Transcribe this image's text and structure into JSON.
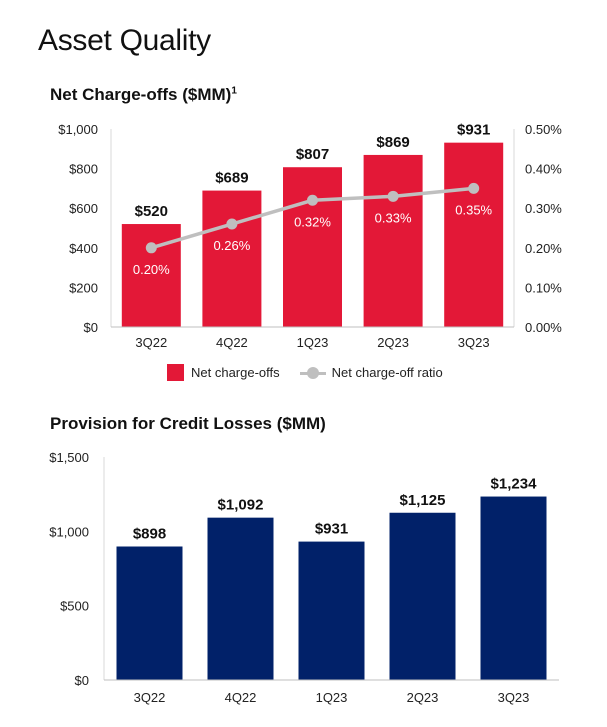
{
  "page": {
    "title": "Asset Quality"
  },
  "chart_data": [
    {
      "type": "bar",
      "title": "Net Charge-offs ($MM)",
      "title_superscript": "1",
      "categories": [
        "3Q22",
        "4Q22",
        "1Q23",
        "2Q23",
        "3Q23"
      ],
      "series": [
        {
          "name": "Net charge-offs",
          "type": "bar",
          "axis": "left",
          "values": [
            520,
            689,
            807,
            869,
            931
          ],
          "labels": [
            "$520",
            "$689",
            "$807",
            "$869",
            "$931"
          ],
          "color": "#e31837"
        },
        {
          "name": "Net charge-off ratio",
          "type": "line",
          "axis": "right",
          "values": [
            0.2,
            0.26,
            0.32,
            0.33,
            0.35
          ],
          "labels": [
            "0.20%",
            "0.26%",
            "0.32%",
            "0.33%",
            "0.35%"
          ],
          "color": "#bfbfbf"
        }
      ],
      "ylim": [
        0,
        1000
      ],
      "yticks": [
        "$0",
        "$200",
        "$400",
        "$600",
        "$800",
        "$1,000"
      ],
      "y2lim": [
        0,
        0.5
      ],
      "y2ticks": [
        "0.00%",
        "0.10%",
        "0.20%",
        "0.30%",
        "0.40%",
        "0.50%"
      ],
      "legend": "bottom",
      "grid": false
    },
    {
      "type": "bar",
      "title": "Provision for Credit Losses ($MM)",
      "categories": [
        "3Q22",
        "4Q22",
        "1Q23",
        "2Q23",
        "3Q23"
      ],
      "values": [
        898,
        1092,
        931,
        1125,
        1234
      ],
      "labels": [
        "$898",
        "$1,092",
        "$931",
        "$1,125",
        "$1,234"
      ],
      "color": "#012169",
      "ylim": [
        0,
        1500
      ],
      "yticks": [
        "$0",
        "$500",
        "$1,000",
        "$1,500"
      ],
      "grid": false
    }
  ]
}
